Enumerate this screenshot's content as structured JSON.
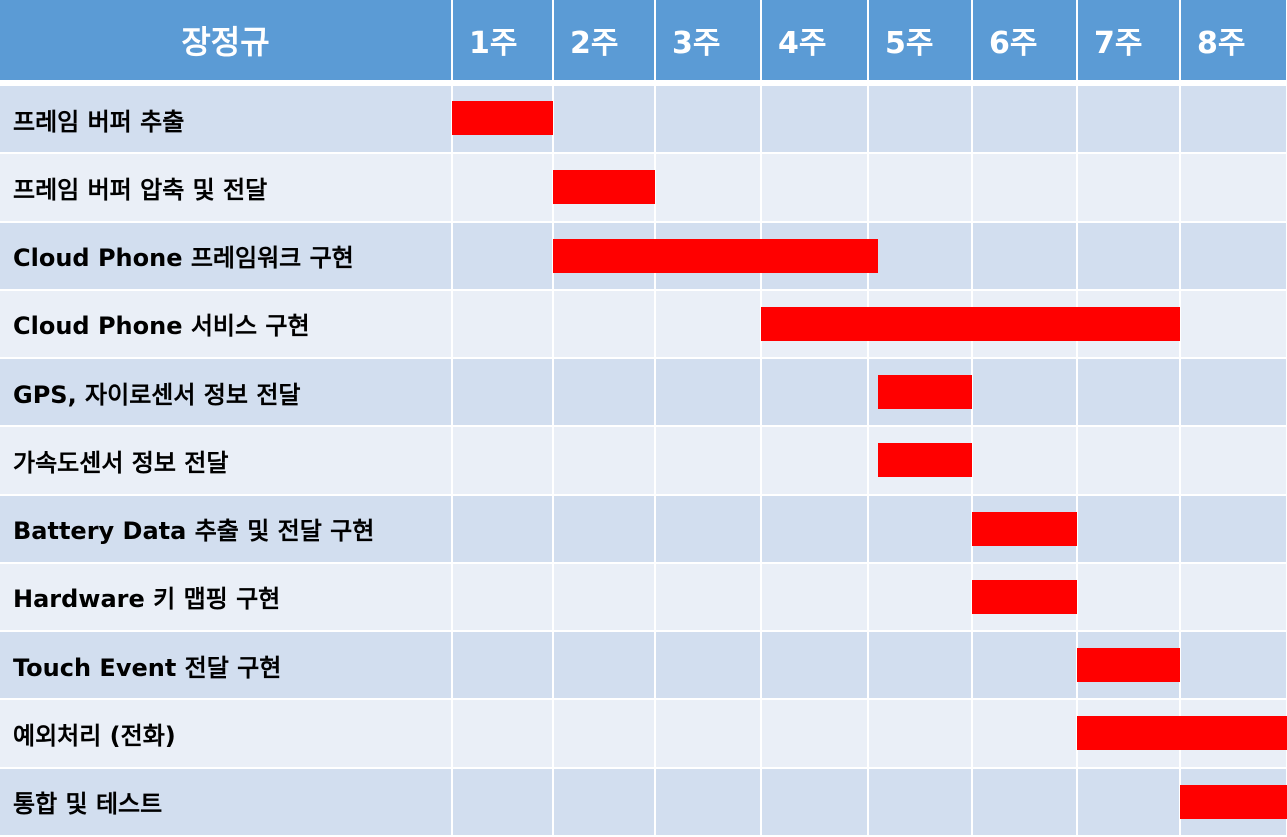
{
  "chart_data": {
    "type": "gantt",
    "header": "장정규",
    "weeks": [
      "1주",
      "2주",
      "3주",
      "4주",
      "5주",
      "6주",
      "7주",
      "8주"
    ],
    "bar_color": "#ff0000",
    "header_color": "#5b9bd5",
    "row_colors": [
      "#d2deef",
      "#eaeff7"
    ],
    "tasks": [
      {
        "name": "프레임 버퍼 추출",
        "start": 0,
        "end": 1
      },
      {
        "name": "프레임 버퍼 압축 및 전달",
        "start": 1,
        "end": 2
      },
      {
        "name": "Cloud Phone 프레임워크 구현",
        "start": 1,
        "end": 4.1
      },
      {
        "name": "Cloud Phone 서비스 구현",
        "start": 3,
        "end": 7
      },
      {
        "name": "GPS, 자이로센서 정보 전달",
        "start": 4.1,
        "end": 5
      },
      {
        "name": "가속도센서 정보 전달",
        "start": 4.1,
        "end": 5
      },
      {
        "name": "Battery Data 추출 및 전달 구현",
        "start": 5,
        "end": 6
      },
      {
        "name": "Hardware 키 맵핑 구현",
        "start": 5,
        "end": 6
      },
      {
        "name": "Touch Event 전달 구현",
        "start": 6,
        "end": 7
      },
      {
        "name": "예외처리 (전화)",
        "start": 6,
        "end": 8
      },
      {
        "name": "통합 및 테스트",
        "start": 7,
        "end": 8
      }
    ]
  }
}
